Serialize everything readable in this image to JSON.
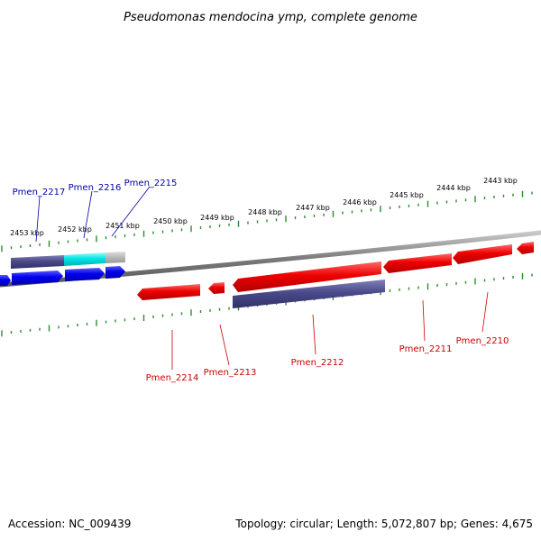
{
  "title": "Pseudomonas mendocina ymp, complete genome",
  "footer": {
    "accession": "Accession: NC_009439",
    "summary": "Topology: circular; Length: 5,072,807 bp; Genes: 4,675"
  },
  "colors": {
    "backbone": "#8a8a8a",
    "forward_label": "#0000aa",
    "reverse_label": "#cc0000",
    "tick": "#2e8b2e",
    "gene_forward": "#0000ee",
    "gene_reverse": "#ee0000",
    "cds_bar": "#4a4a8a",
    "cds_cyan": "#00e5e5",
    "cds_grey": "#bbbbbb"
  },
  "ruler": {
    "upper_labels": [
      "2453 kbp",
      "2452 kbp",
      "2451 kbp",
      "2450 kbp",
      "2449 kbp",
      "2448 kbp",
      "2447 kbp",
      "2446 kbp",
      "2445 kbp",
      "2444 kbp",
      "2443 kbp"
    ]
  },
  "genes": {
    "forward": [
      {
        "label": "Pmen_2217"
      },
      {
        "label": "Pmen_2216"
      },
      {
        "label": "Pmen_2215"
      }
    ],
    "reverse": [
      {
        "label": "Pmen_2214"
      },
      {
        "label": "Pmen_2213"
      },
      {
        "label": "Pmen_2212"
      },
      {
        "label": "Pmen_2211"
      },
      {
        "label": "Pmen_2210"
      }
    ]
  }
}
